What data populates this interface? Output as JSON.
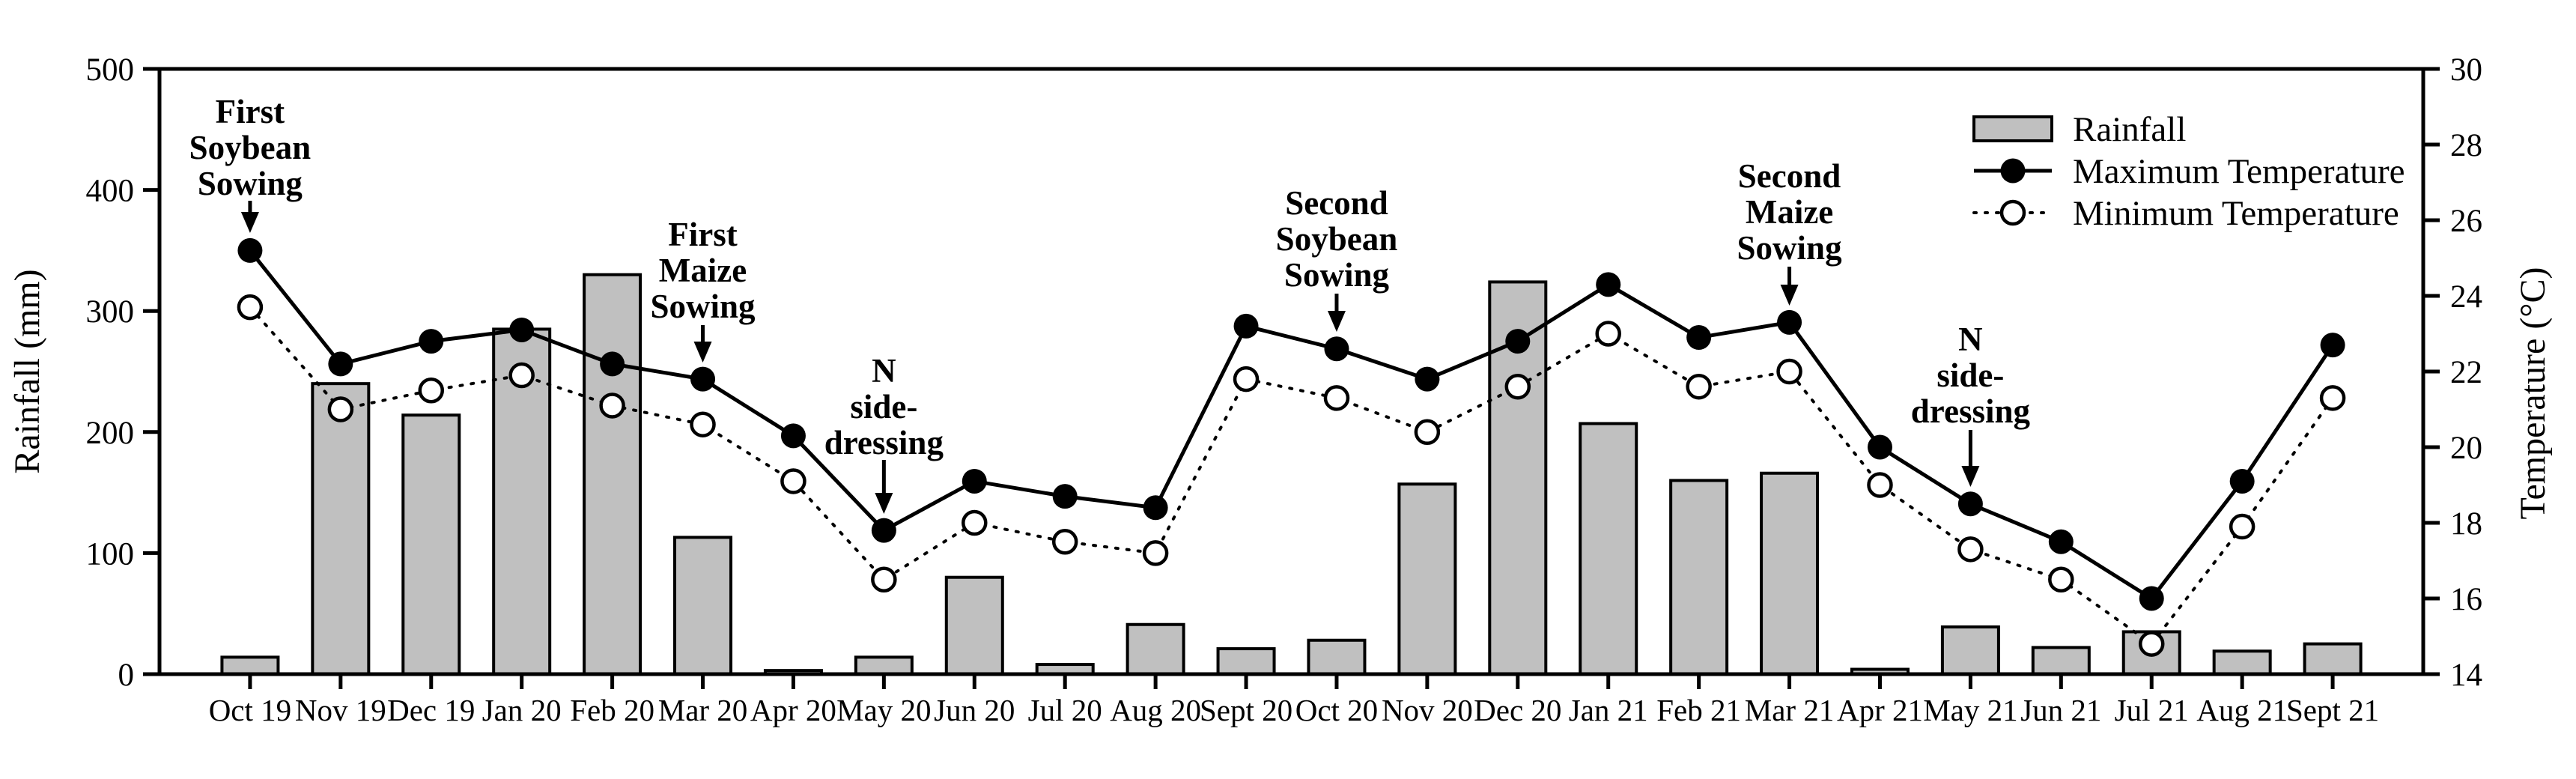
{
  "chart_data": {
    "type": "bar+line",
    "title": "",
    "categories": [
      "Oct 19",
      "Nov 19",
      "Dec 19",
      "Jan 20",
      "Feb 20",
      "Mar 20",
      "Apr 20",
      "May 20",
      "Jun 20",
      "Jul 20",
      "Aug 20",
      "Sept 20",
      "Oct 20",
      "Nov 20",
      "Dec 20",
      "Jan 21",
      "Feb 21",
      "Mar 21",
      "Apr 21",
      "May 21",
      "Jun 21",
      "Jul 21",
      "Aug 21",
      "Sept 21"
    ],
    "series": [
      {
        "name": "Rainfall",
        "type": "bar",
        "axis": "left",
        "values": [
          14,
          240,
          214,
          285,
          330,
          113,
          3,
          14,
          80,
          8,
          41,
          21,
          28,
          157,
          324,
          207,
          160,
          166,
          4,
          39,
          22,
          35,
          19,
          25
        ]
      },
      {
        "name": "Maximum Temperature",
        "type": "line",
        "axis": "right",
        "marker": "filled-circle",
        "line_style": "solid",
        "values": [
          25.2,
          22.2,
          22.8,
          23.1,
          22.2,
          21.8,
          20.3,
          17.8,
          19.1,
          18.7,
          18.4,
          23.2,
          22.6,
          21.8,
          22.8,
          24.3,
          22.9,
          23.3,
          20.0,
          18.5,
          17.5,
          16.0,
          19.1,
          22.7
        ]
      },
      {
        "name": "Minimum Temperature",
        "type": "line",
        "axis": "right",
        "marker": "open-circle",
        "line_style": "dotted",
        "values": [
          23.7,
          21.0,
          21.5,
          21.9,
          21.1,
          20.6,
          19.1,
          16.5,
          18.0,
          17.5,
          17.2,
          21.8,
          21.3,
          20.4,
          21.6,
          23.0,
          21.6,
          22.0,
          19.0,
          17.3,
          16.5,
          14.8,
          17.9,
          21.3
        ]
      }
    ],
    "left_axis": {
      "label": "Rainfall (mm)",
      "min": 0,
      "max": 500,
      "ticks": [
        0,
        100,
        200,
        300,
        400,
        500
      ]
    },
    "right_axis": {
      "label": "Temperature (°C)",
      "min": 14,
      "max": 30,
      "ticks": [
        14,
        16,
        18,
        20,
        22,
        24,
        26,
        28,
        30
      ]
    },
    "legend": {
      "position": "top-right",
      "entries": [
        "Rainfall",
        "Maximum Temperature",
        "Minimum Temperature"
      ]
    },
    "annotations": [
      {
        "lines": [
          "First",
          "Soybean",
          "Sowing"
        ],
        "month": "Oct 19",
        "target_series": "Maximum Temperature",
        "line_ys": [
          148,
          196,
          244
        ],
        "arrow_from_y": 268,
        "arrow_tip_y": 311
      },
      {
        "lines": [
          "First",
          "Maize",
          "Sowing"
        ],
        "month": "Mar 20",
        "target_series": "Maximum Temperature",
        "line_ys": [
          312,
          360,
          408
        ],
        "arrow_from_y": 434,
        "arrow_tip_y": 484
      },
      {
        "lines": [
          "N",
          "side-",
          "dressing"
        ],
        "month": "May 20",
        "target_series": "Maximum Temperature",
        "line_ys": [
          494,
          542,
          590
        ],
        "arrow_from_y": 614,
        "arrow_tip_y": 686
      },
      {
        "lines": [
          "Second",
          "Soybean",
          "Sowing"
        ],
        "month": "Oct 20",
        "target_series": "Maximum Temperature",
        "line_ys": [
          270,
          318,
          366
        ],
        "arrow_from_y": 392,
        "arrow_tip_y": 443
      },
      {
        "lines": [
          "Second",
          "Maize",
          "Sowing"
        ],
        "month": "Mar 21",
        "target_series": "Maximum Temperature",
        "line_ys": [
          234,
          282,
          330
        ],
        "arrow_from_y": 356,
        "arrow_tip_y": 408
      },
      {
        "lines": [
          "N",
          "side-",
          "dressing"
        ],
        "month": "May 21",
        "target_series": "Maximum Temperature",
        "line_ys": [
          452,
          500,
          548
        ],
        "arrow_from_y": 574,
        "arrow_tip_y": 650
      }
    ],
    "colors": {
      "bar_fill": "#c0c0c0",
      "line": "#000000",
      "background": "#ffffff"
    },
    "grid": false
  }
}
